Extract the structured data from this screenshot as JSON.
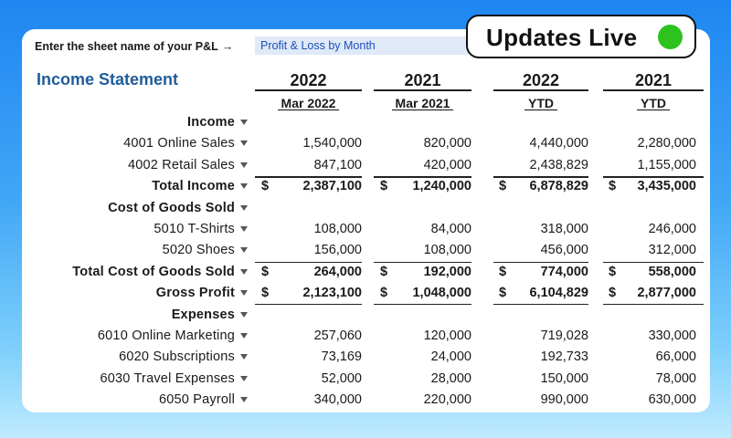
{
  "prompt": {
    "label": "Enter the sheet name of your P&L",
    "arrow": "→"
  },
  "sheet_name": {
    "value": "Profit & Loss by Month"
  },
  "title": "Income Statement",
  "columns": [
    {
      "year": "2022",
      "period": "Mar 2022"
    },
    {
      "year": "2021",
      "period": "Mar 2021"
    },
    {
      "year": "2022",
      "period": "YTD"
    },
    {
      "year": "2021",
      "period": "YTD"
    }
  ],
  "rows": [
    {
      "label": "Income",
      "bold": true,
      "values": [
        "",
        "",
        "",
        ""
      ]
    },
    {
      "label": "4001 Online Sales",
      "bold": false,
      "values": [
        "1,540,000",
        "820,000",
        "4,440,000",
        "2,280,000"
      ]
    },
    {
      "label": "4002 Retail Sales",
      "bold": false,
      "values": [
        "847,100",
        "420,000",
        "2,438,829",
        "1,155,000"
      ]
    },
    {
      "label": "Total Income",
      "bold": true,
      "currency": "$",
      "values": [
        "2,387,100",
        "1,240,000",
        "6,878,829",
        "3,435,000"
      ]
    },
    {
      "label": "Cost of Goods Sold",
      "bold": true,
      "values": [
        "",
        "",
        "",
        ""
      ]
    },
    {
      "label": "5010 T-Shirts",
      "bold": false,
      "values": [
        "108,000",
        "84,000",
        "318,000",
        "246,000"
      ]
    },
    {
      "label": "5020 Shoes",
      "bold": false,
      "values": [
        "156,000",
        "108,000",
        "456,000",
        "312,000"
      ]
    },
    {
      "label": "Total Cost of Goods Sold",
      "bold": true,
      "currency": "$",
      "values": [
        "264,000",
        "192,000",
        "774,000",
        "558,000"
      ]
    },
    {
      "label": "Gross Profit",
      "bold": true,
      "currency": "$",
      "values": [
        "2,123,100",
        "1,048,000",
        "6,104,829",
        "2,877,000"
      ]
    },
    {
      "label": "Expenses",
      "bold": true,
      "values": [
        "",
        "",
        "",
        ""
      ]
    },
    {
      "label": "6010 Online Marketing",
      "bold": false,
      "values": [
        "257,060",
        "120,000",
        "719,028",
        "330,000"
      ]
    },
    {
      "label": "6020 Subscriptions",
      "bold": false,
      "values": [
        "73,169",
        "24,000",
        "192,733",
        "66,000"
      ]
    },
    {
      "label": "6030 Travel Expenses",
      "bold": false,
      "values": [
        "52,000",
        "28,000",
        "150,000",
        "78,000"
      ]
    },
    {
      "label": "6050 Payroll",
      "bold": false,
      "values": [
        "340,000",
        "220,000",
        "990,000",
        "630,000"
      ]
    }
  ],
  "badge": {
    "text": "Updates Live",
    "dot_color": "#2ec21f"
  },
  "colors": {
    "title": "#1f5c9a",
    "input_bg": "#dfe9f7",
    "input_text": "#1d4fb8"
  }
}
